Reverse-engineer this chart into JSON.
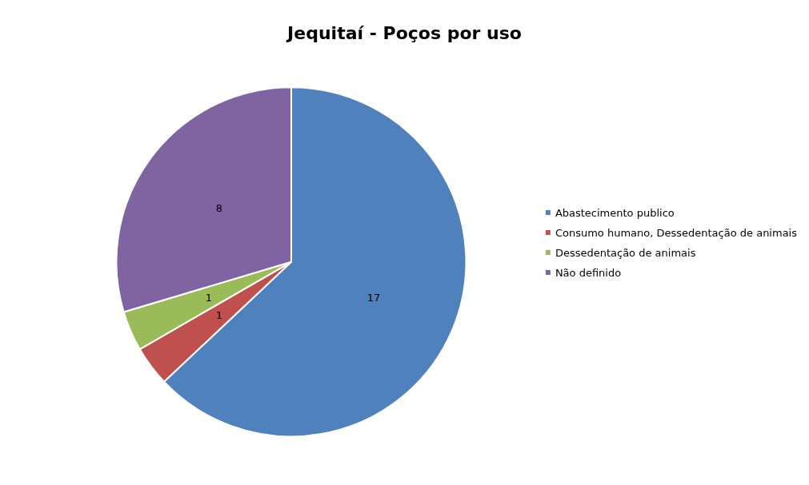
{
  "chart_data": {
    "type": "pie",
    "title": "Jequitaí - Poços por uso",
    "categories": [
      "Abastecimento publico",
      "Consumo humano, Dessedentação de animais",
      "Dessedentação de animais",
      "Não definido"
    ],
    "values": [
      17,
      1,
      1,
      8
    ],
    "colors": [
      "#4f81bd",
      "#c0504d",
      "#9bbb59",
      "#8064a2"
    ],
    "data_labels": true,
    "legend": "right"
  }
}
